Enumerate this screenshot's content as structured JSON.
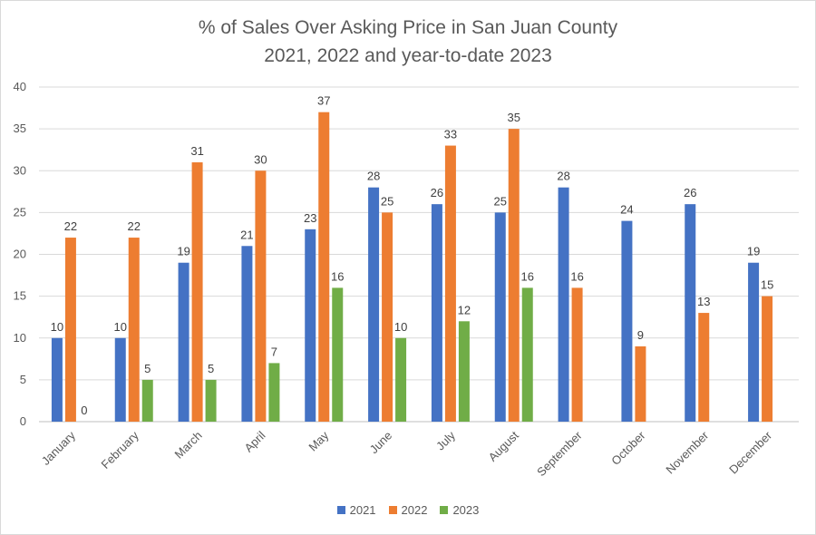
{
  "chart_data": {
    "type": "bar",
    "title": "% of Sales Over Asking Price in San Juan County",
    "subtitle": "2021, 2022 and year-to-date 2023",
    "categories": [
      "January",
      "February",
      "March",
      "April",
      "May",
      "June",
      "July",
      "August",
      "September",
      "October",
      "November",
      "December"
    ],
    "series": [
      {
        "name": "2021",
        "color": "#4472c4",
        "values": [
          10,
          10,
          19,
          21,
          23,
          28,
          26,
          25,
          28,
          24,
          26,
          19
        ]
      },
      {
        "name": "2022",
        "color": "#ed7d31",
        "values": [
          22,
          22,
          31,
          30,
          37,
          25,
          33,
          35,
          16,
          9,
          13,
          15
        ]
      },
      {
        "name": "2023",
        "color": "#70ad47",
        "values": [
          0,
          5,
          5,
          7,
          16,
          10,
          12,
          16,
          null,
          null,
          null,
          null
        ]
      }
    ],
    "ylim": [
      0,
      40
    ],
    "yticks": [
      0,
      5,
      10,
      15,
      20,
      25,
      30,
      35,
      40
    ],
    "grid": true,
    "legend_position": "bottom",
    "data_labels": true
  }
}
